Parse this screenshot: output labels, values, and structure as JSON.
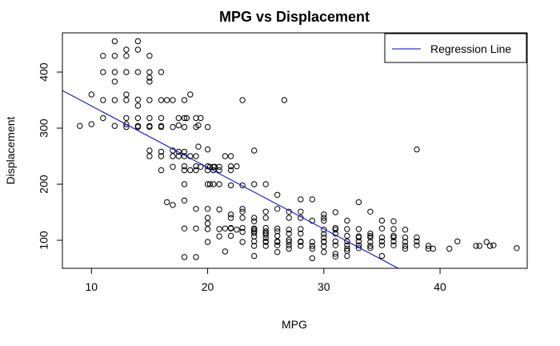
{
  "chart_data": {
    "type": "scatter",
    "title": "MPG vs Displacement",
    "xlabel": "MPG",
    "ylabel": "Displacement",
    "xlim": [
      7.5,
      47.5
    ],
    "ylim": [
      50,
      470
    ],
    "xticks": [
      10,
      20,
      30,
      40
    ],
    "yticks": [
      100,
      200,
      300,
      400
    ],
    "grid": false,
    "legend_position": "top-right",
    "series": [
      {
        "name": "",
        "marker": "open-circle",
        "color": "#000000",
        "points": [
          [
            9,
            304
          ],
          [
            10,
            360
          ],
          [
            10,
            307
          ],
          [
            11,
            318
          ],
          [
            11,
            350
          ],
          [
            11,
            400
          ],
          [
            11,
            429
          ],
          [
            12,
            455
          ],
          [
            12,
            429
          ],
          [
            12,
            400
          ],
          [
            12,
            383
          ],
          [
            12,
            350
          ],
          [
            12,
            304
          ],
          [
            13,
            440
          ],
          [
            13,
            429
          ],
          [
            13,
            400
          ],
          [
            13,
            360
          ],
          [
            13,
            350
          ],
          [
            13,
            318
          ],
          [
            13,
            307
          ],
          [
            13,
            302
          ],
          [
            14,
            455
          ],
          [
            14,
            440
          ],
          [
            14,
            400
          ],
          [
            14,
            351
          ],
          [
            14,
            340
          ],
          [
            14,
            318
          ],
          [
            14,
            304
          ],
          [
            14,
            302
          ],
          [
            15,
            429
          ],
          [
            15,
            400
          ],
          [
            15,
            390
          ],
          [
            15,
            383
          ],
          [
            15,
            350
          ],
          [
            15,
            318
          ],
          [
            15,
            304
          ],
          [
            15,
            302
          ],
          [
            15,
            260
          ],
          [
            15,
            250
          ],
          [
            16,
            400
          ],
          [
            16,
            350
          ],
          [
            16,
            318
          ],
          [
            16,
            304
          ],
          [
            16,
            302
          ],
          [
            16,
            258
          ],
          [
            16,
            250
          ],
          [
            16,
            225
          ],
          [
            16.5,
            350
          ],
          [
            16.5,
            168
          ],
          [
            17,
            350
          ],
          [
            17,
            302
          ],
          [
            17,
            260
          ],
          [
            17,
            250
          ],
          [
            17,
            231
          ],
          [
            17,
            163
          ],
          [
            17.5,
            318
          ],
          [
            17.5,
            305
          ],
          [
            17.5,
            258
          ],
          [
            17.5,
            250
          ],
          [
            18,
            350
          ],
          [
            18,
            318
          ],
          [
            18,
            302
          ],
          [
            18,
            258
          ],
          [
            18,
            250
          ],
          [
            18,
            232
          ],
          [
            18,
            225
          ],
          [
            18,
            200
          ],
          [
            18,
            171
          ],
          [
            18,
            121
          ],
          [
            18,
            70
          ],
          [
            18.2,
            318
          ],
          [
            18.5,
            360
          ],
          [
            18.5,
            250
          ],
          [
            18.5,
            225
          ],
          [
            19,
            318
          ],
          [
            19,
            302
          ],
          [
            19,
            250
          ],
          [
            19,
            232
          ],
          [
            19,
            225
          ],
          [
            19,
            156
          ],
          [
            19,
            121
          ],
          [
            19,
            70
          ],
          [
            19.2,
            305
          ],
          [
            19.2,
            267
          ],
          [
            19.4,
            318
          ],
          [
            19.4,
            231
          ],
          [
            20,
            302
          ],
          [
            20,
            262
          ],
          [
            20,
            232
          ],
          [
            20,
            225
          ],
          [
            20,
            200
          ],
          [
            20,
            156
          ],
          [
            20,
            140
          ],
          [
            20,
            130
          ],
          [
            20,
            120
          ],
          [
            20,
            97
          ],
          [
            20.2,
            231
          ],
          [
            20.2,
            200
          ],
          [
            20.5,
            231
          ],
          [
            20.5,
            225
          ],
          [
            20.5,
            200
          ],
          [
            20.6,
            231
          ],
          [
            21,
            231
          ],
          [
            21,
            225
          ],
          [
            21,
            200
          ],
          [
            21,
            155
          ],
          [
            21,
            120
          ],
          [
            21,
            107
          ],
          [
            21.5,
            250
          ],
          [
            21.5,
            121
          ],
          [
            21.5,
            80
          ],
          [
            22,
            250
          ],
          [
            22,
            232
          ],
          [
            22,
            225
          ],
          [
            22,
            198
          ],
          [
            22,
            146
          ],
          [
            22,
            140
          ],
          [
            22,
            122
          ],
          [
            22,
            121
          ],
          [
            22,
            108
          ],
          [
            22.5,
            232
          ],
          [
            22.5,
            119
          ],
          [
            23,
            350
          ],
          [
            23,
            198
          ],
          [
            23,
            156
          ],
          [
            23,
            151
          ],
          [
            23,
            140
          ],
          [
            23,
            122
          ],
          [
            23,
            115
          ],
          [
            23,
            97
          ],
          [
            24,
            260
          ],
          [
            24,
            200
          ],
          [
            24,
            140
          ],
          [
            24,
            134
          ],
          [
            24,
            121
          ],
          [
            24,
            119
          ],
          [
            24,
            116
          ],
          [
            24,
            113
          ],
          [
            24,
            107
          ],
          [
            24,
            98
          ],
          [
            24,
            90
          ],
          [
            24,
            72
          ],
          [
            25,
            200
          ],
          [
            25,
            151
          ],
          [
            25,
            140
          ],
          [
            25,
            122
          ],
          [
            25,
            116
          ],
          [
            25,
            113
          ],
          [
            25,
            110
          ],
          [
            25,
            104
          ],
          [
            25,
            98
          ],
          [
            25,
            97
          ],
          [
            25,
            90
          ],
          [
            26,
            181
          ],
          [
            26,
            156
          ],
          [
            26,
            121
          ],
          [
            26,
            116
          ],
          [
            26,
            108
          ],
          [
            26,
            98
          ],
          [
            26,
            97
          ],
          [
            26,
            91
          ],
          [
            26,
            79
          ],
          [
            27,
            151
          ],
          [
            27,
            140
          ],
          [
            27,
            119
          ],
          [
            27,
            112
          ],
          [
            27,
            101
          ],
          [
            27,
            97
          ],
          [
            27,
            91
          ],
          [
            27,
            85
          ],
          [
            26.6,
            350
          ],
          [
            28,
            173
          ],
          [
            28,
            151
          ],
          [
            28,
            140
          ],
          [
            28,
            120
          ],
          [
            28,
            112
          ],
          [
            28,
            98
          ],
          [
            28,
            97
          ],
          [
            28,
            90
          ],
          [
            29,
            173
          ],
          [
            29,
            135
          ],
          [
            29,
            97
          ],
          [
            29,
            90
          ],
          [
            29,
            85
          ],
          [
            29,
            68
          ],
          [
            30,
            146
          ],
          [
            30,
            140
          ],
          [
            30,
            135
          ],
          [
            30,
            119
          ],
          [
            30,
            111
          ],
          [
            30,
            105
          ],
          [
            30,
            98
          ],
          [
            30,
            97
          ],
          [
            30,
            89
          ],
          [
            30,
            79
          ],
          [
            31,
            150
          ],
          [
            31,
            122
          ],
          [
            31,
            119
          ],
          [
            31,
            112
          ],
          [
            31,
            98
          ],
          [
            31,
            91
          ],
          [
            31,
            76
          ],
          [
            31,
            71
          ],
          [
            32,
            135
          ],
          [
            32,
            120
          ],
          [
            32,
            108
          ],
          [
            32,
            98
          ],
          [
            32,
            91
          ],
          [
            32,
            85
          ],
          [
            32,
            81
          ],
          [
            32,
            72
          ],
          [
            33,
            168
          ],
          [
            33,
            120
          ],
          [
            33,
            107
          ],
          [
            33,
            105
          ],
          [
            33,
            98
          ],
          [
            33,
            91
          ],
          [
            33,
            86
          ],
          [
            34,
            151
          ],
          [
            34,
            112
          ],
          [
            34,
            108
          ],
          [
            34,
            105
          ],
          [
            34,
            97
          ],
          [
            34,
            90
          ],
          [
            34,
            86
          ],
          [
            35,
            135
          ],
          [
            35,
            121
          ],
          [
            35,
            105
          ],
          [
            35,
            98
          ],
          [
            35,
            91
          ],
          [
            35,
            72
          ],
          [
            36,
            134
          ],
          [
            36,
            120
          ],
          [
            36,
            108
          ],
          [
            36,
            105
          ],
          [
            36,
            98
          ],
          [
            36,
            91
          ],
          [
            37,
            119
          ],
          [
            37,
            105
          ],
          [
            37,
            97
          ],
          [
            37,
            90
          ],
          [
            37,
            85
          ],
          [
            38,
            262
          ],
          [
            38,
            105
          ],
          [
            38,
            98
          ],
          [
            38,
            91
          ],
          [
            39,
            90
          ],
          [
            39,
            85
          ],
          [
            39.4,
            85
          ],
          [
            40.8,
            85
          ],
          [
            41.5,
            98
          ],
          [
            43.1,
            90
          ],
          [
            43.4,
            90
          ],
          [
            44,
            97
          ],
          [
            44.3,
            90
          ],
          [
            44.6,
            91
          ],
          [
            46.6,
            86
          ]
        ]
      },
      {
        "name": "Regression Line",
        "type": "line",
        "color": "#0000cc",
        "points": [
          [
            7.5,
            367
          ],
          [
            36.4,
            50
          ]
        ]
      }
    ]
  }
}
